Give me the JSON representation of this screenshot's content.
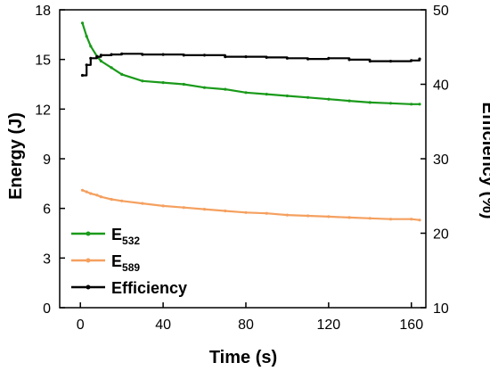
{
  "chart_data": {
    "type": "line",
    "xlabel": "Time (s)",
    "ylabel": "Energy (J)",
    "y2label": "Efficiency (%)",
    "xlim": [
      -10,
      167
    ],
    "ylim": [
      0,
      18
    ],
    "y2lim": [
      10,
      50
    ],
    "x_ticks": [
      0,
      40,
      80,
      120,
      160
    ],
    "y_ticks": [
      0,
      3,
      6,
      9,
      12,
      15,
      18
    ],
    "y2_ticks": [
      10,
      20,
      30,
      40,
      50
    ],
    "x": [
      1,
      3,
      5,
      8,
      10,
      15,
      20,
      30,
      40,
      50,
      60,
      70,
      80,
      90,
      100,
      110,
      120,
      130,
      140,
      150,
      160,
      164
    ],
    "series": [
      {
        "legend_base": "E",
        "legend_sub": "532",
        "axis": "left",
        "color": "#1a9a1a",
        "values": [
          17.2,
          16.4,
          15.8,
          15.2,
          14.9,
          14.5,
          14.1,
          13.7,
          13.6,
          13.5,
          13.3,
          13.2,
          13.0,
          12.9,
          12.8,
          12.7,
          12.6,
          12.5,
          12.4,
          12.35,
          12.3,
          12.3
        ]
      },
      {
        "legend_base": "E",
        "legend_sub": "589",
        "axis": "left",
        "color": "#f5a05f",
        "values": [
          7.1,
          7.0,
          6.9,
          6.8,
          6.7,
          6.55,
          6.45,
          6.3,
          6.15,
          6.05,
          5.95,
          5.85,
          5.75,
          5.7,
          5.6,
          5.55,
          5.5,
          5.45,
          5.4,
          5.35,
          5.35,
          5.3
        ]
      },
      {
        "name": "Efficiency",
        "axis": "right",
        "color": "#000000",
        "values": [
          41.2,
          42.6,
          43.5,
          43.7,
          43.9,
          44.0,
          44.1,
          44.0,
          44.0,
          43.9,
          43.9,
          43.7,
          43.7,
          43.6,
          43.5,
          43.4,
          43.5,
          43.3,
          43.1,
          43.1,
          43.2,
          43.4
        ]
      }
    ],
    "legend_position": "bottom-left",
    "grid": false
  }
}
